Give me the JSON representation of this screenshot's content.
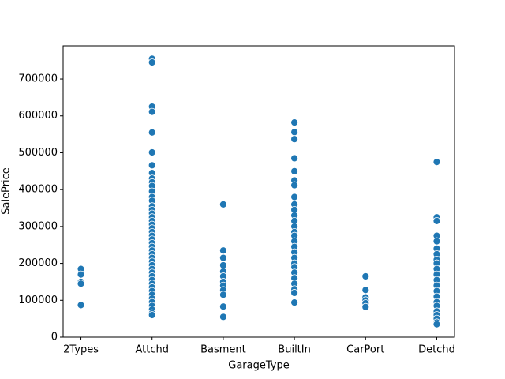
{
  "chart_data": {
    "type": "scatter",
    "xlabel": "GarageType",
    "ylabel": "SalePrice",
    "categories": [
      "2Types",
      "Attchd",
      "Basment",
      "BuiltIn",
      "CarPort",
      "Detchd"
    ],
    "color": "#1f77b4",
    "ylim": [
      0,
      790000
    ],
    "yticks": [
      0,
      100000,
      200000,
      300000,
      400000,
      500000,
      600000,
      700000
    ],
    "x": [
      "2Types",
      "2Types",
      "2Types",
      "2Types",
      "2Types",
      "Attchd",
      "Attchd",
      "Attchd",
      "Attchd",
      "Attchd",
      "Attchd",
      "Attchd",
      "Attchd",
      "Attchd",
      "Attchd",
      "Attchd",
      "Attchd",
      "Attchd",
      "Attchd",
      "Attchd",
      "Attchd",
      "Attchd",
      "Attchd",
      "Attchd",
      "Attchd",
      "Attchd",
      "Attchd",
      "Attchd",
      "Attchd",
      "Attchd",
      "Attchd",
      "Attchd",
      "Attchd",
      "Attchd",
      "Attchd",
      "Attchd",
      "Attchd",
      "Attchd",
      "Attchd",
      "Attchd",
      "Attchd",
      "Attchd",
      "Attchd",
      "Attchd",
      "Attchd",
      "Attchd",
      "Attchd",
      "Attchd",
      "Attchd",
      "Attchd",
      "Basment",
      "Basment",
      "Basment",
      "Basment",
      "Basment",
      "Basment",
      "Basment",
      "Basment",
      "Basment",
      "Basment",
      "Basment",
      "Basment",
      "BuiltIn",
      "BuiltIn",
      "BuiltIn",
      "BuiltIn",
      "BuiltIn",
      "BuiltIn",
      "BuiltIn",
      "BuiltIn",
      "BuiltIn",
      "BuiltIn",
      "BuiltIn",
      "BuiltIn",
      "BuiltIn",
      "BuiltIn",
      "BuiltIn",
      "BuiltIn",
      "BuiltIn",
      "BuiltIn",
      "BuiltIn",
      "BuiltIn",
      "BuiltIn",
      "BuiltIn",
      "BuiltIn",
      "BuiltIn",
      "BuiltIn",
      "BuiltIn",
      "BuiltIn",
      "CarPort",
      "CarPort",
      "CarPort",
      "CarPort",
      "CarPort",
      "CarPort",
      "Detchd",
      "Detchd",
      "Detchd",
      "Detchd",
      "Detchd",
      "Detchd",
      "Detchd",
      "Detchd",
      "Detchd",
      "Detchd",
      "Detchd",
      "Detchd",
      "Detchd",
      "Detchd",
      "Detchd",
      "Detchd",
      "Detchd",
      "Detchd",
      "Detchd",
      "Detchd",
      "Detchd",
      "Detchd"
    ],
    "y": [
      185000,
      170000,
      150000,
      145000,
      87000,
      755000,
      745000,
      625000,
      611000,
      555000,
      501000,
      466000,
      445000,
      430000,
      420000,
      410000,
      395000,
      380000,
      370000,
      355000,
      345000,
      335000,
      325000,
      315000,
      305000,
      295000,
      285000,
      275000,
      265000,
      255000,
      245000,
      235000,
      225000,
      215000,
      205000,
      195000,
      185000,
      175000,
      165000,
      155000,
      145000,
      135000,
      125000,
      115000,
      105000,
      95000,
      85000,
      75000,
      65000,
      60000,
      360000,
      235000,
      215000,
      195000,
      178000,
      165000,
      150000,
      140000,
      128000,
      115000,
      83000,
      55000,
      582000,
      556000,
      537000,
      485000,
      450000,
      425000,
      412000,
      380000,
      360000,
      345000,
      330000,
      315000,
      300000,
      285000,
      275000,
      260000,
      245000,
      230000,
      215000,
      200000,
      190000,
      175000,
      160000,
      145000,
      130000,
      120000,
      94000,
      165000,
      128000,
      108000,
      100000,
      92000,
      82000,
      475000,
      325000,
      315000,
      275000,
      260000,
      240000,
      225000,
      210000,
      200000,
      185000,
      170000,
      155000,
      140000,
      125000,
      110000,
      95000,
      85000,
      70000,
      60000,
      50000,
      40000,
      35000
    ]
  }
}
